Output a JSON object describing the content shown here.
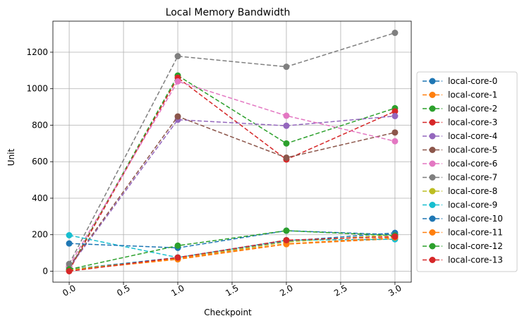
{
  "chart_data": {
    "type": "line",
    "title": "Local Memory Bandwidth",
    "xlabel": "Checkpoint",
    "ylabel": "Unit",
    "xlim": [
      -0.15,
      3.15
    ],
    "ylim": [
      -60,
      1370
    ],
    "x_ticks": [
      0.0,
      0.5,
      1.0,
      1.5,
      2.0,
      2.5,
      3.0
    ],
    "x_tick_labels": [
      "0.0",
      "0.5",
      "1.0",
      "1.5",
      "2.0",
      "2.5",
      "3.0"
    ],
    "y_ticks": [
      0,
      200,
      400,
      600,
      800,
      1000,
      1200
    ],
    "y_tick_labels": [
      "0",
      "200",
      "400",
      "600",
      "800",
      "1000",
      "1200"
    ],
    "grid": true,
    "legend_position": "outside-right",
    "x": [
      0,
      1,
      2,
      3
    ],
    "series": [
      {
        "name": "local-core-0",
        "color": "#1f77b4",
        "values": [
          10,
          75,
          165,
          210
        ]
      },
      {
        "name": "local-core-1",
        "color": "#ff7f0e",
        "values": [
          5,
          65,
          148,
          178
        ]
      },
      {
        "name": "local-core-2",
        "color": "#2ca02c",
        "values": [
          10,
          1072,
          700,
          893
        ]
      },
      {
        "name": "local-core-3",
        "color": "#d62728",
        "values": [
          5,
          1060,
          612,
          876
        ]
      },
      {
        "name": "local-core-4",
        "color": "#9467bd",
        "values": [
          20,
          830,
          797,
          850
        ]
      },
      {
        "name": "local-core-5",
        "color": "#8c564b",
        "values": [
          25,
          848,
          622,
          760
        ]
      },
      {
        "name": "local-core-6",
        "color": "#e377c2",
        "values": [
          30,
          1040,
          852,
          712
        ]
      },
      {
        "name": "local-core-7",
        "color": "#7f7f7f",
        "values": [
          40,
          1178,
          1120,
          1306
        ]
      },
      {
        "name": "local-core-8",
        "color": "#bcbd22",
        "values": [
          8,
          70,
          160,
          200
        ]
      },
      {
        "name": "local-core-9",
        "color": "#17becf",
        "values": [
          197,
          75,
          170,
          175
        ]
      },
      {
        "name": "local-core-10",
        "color": "#1f77b4",
        "values": [
          152,
          128,
          222,
          200
        ]
      },
      {
        "name": "local-core-11",
        "color": "#ff7f0e",
        "values": [
          3,
          70,
          150,
          185
        ]
      },
      {
        "name": "local-core-12",
        "color": "#2ca02c",
        "values": [
          10,
          140,
          222,
          195
        ]
      },
      {
        "name": "local-core-13",
        "color": "#d62728",
        "values": [
          0,
          75,
          170,
          190
        ]
      }
    ]
  }
}
